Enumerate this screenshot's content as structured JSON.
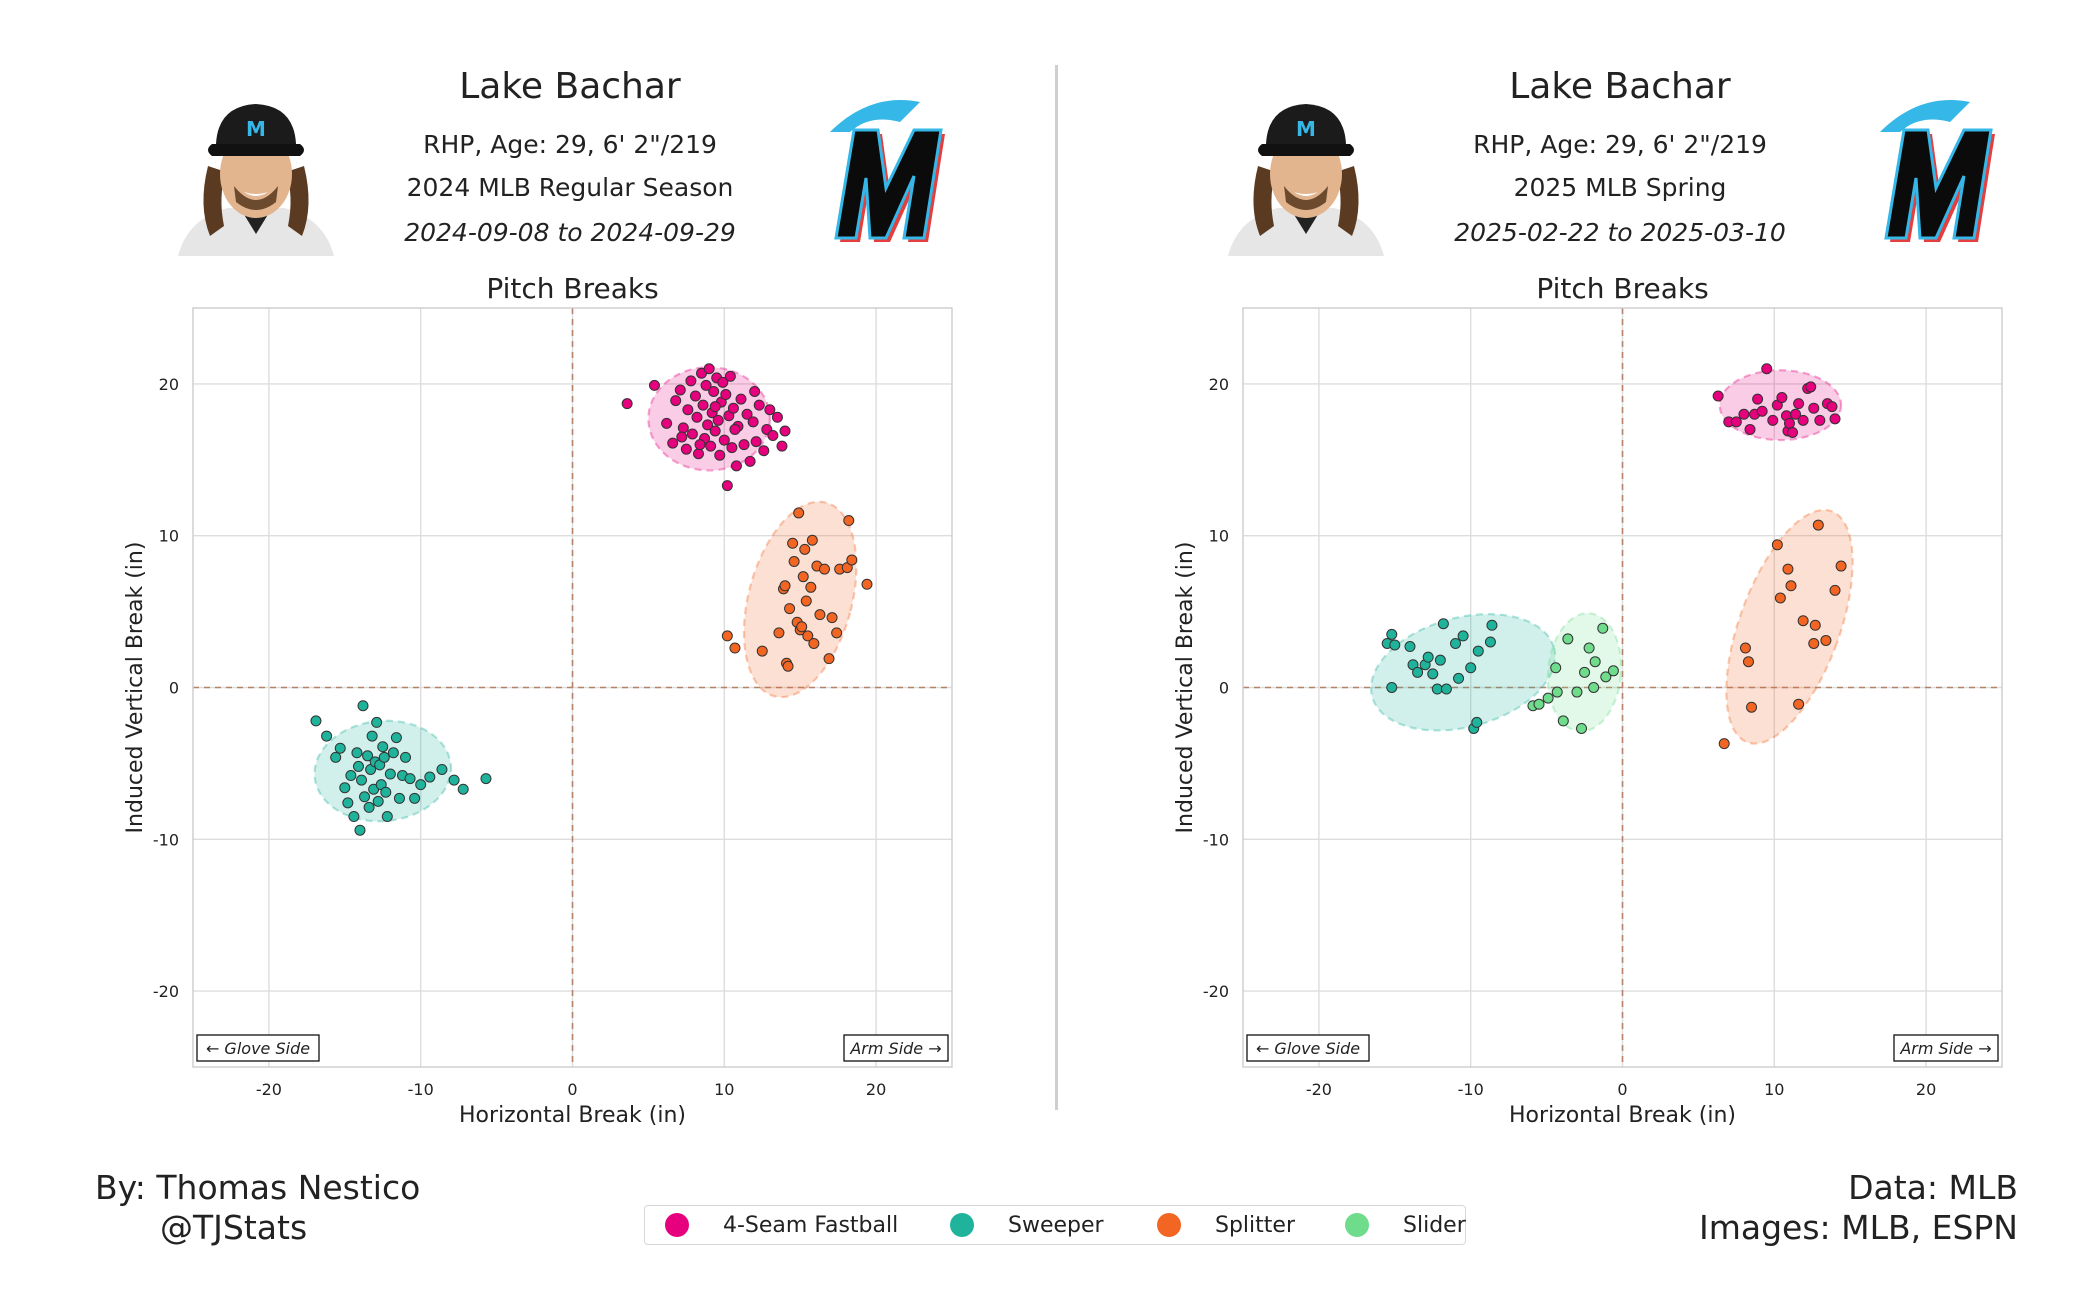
{
  "colors": {
    "4-Seam Fastball": "#e6007e",
    "Sweeper": "#20b39c",
    "Splitter": "#f26522",
    "Slider": "#6fdc8c"
  },
  "icons": {
    "headshot": "player-headshot",
    "logo": "marlins-logo"
  },
  "panels": [
    {
      "player_name": "Lake Bachar",
      "bio": "RHP, Age: 29, 6' 2\"/219",
      "season": "2024 MLB Regular Season",
      "dates": "2024-09-08 to 2024-09-29"
    },
    {
      "player_name": "Lake Bachar",
      "bio": "RHP, Age: 29, 6' 2\"/219",
      "season": "2025 MLB Spring",
      "dates": "2025-02-22 to 2025-03-10"
    }
  ],
  "credits": {
    "by": "By: Thomas Nestico",
    "handle": "@TJStats",
    "data": "Data: MLB",
    "images": "Images: MLB, ESPN"
  },
  "legend": [
    "4-Seam Fastball",
    "Sweeper",
    "Splitter",
    "Slider"
  ],
  "chart_data": [
    {
      "type": "scatter",
      "title": "Pitch Breaks",
      "xlabel": "Horizontal Break (in)",
      "ylabel": "Induced Vertical Break (in)",
      "xlim": [
        -25,
        25
      ],
      "ylim": [
        -25,
        25
      ],
      "xticks": [
        -20,
        -10,
        0,
        10,
        20
      ],
      "yticks": [
        -20,
        -10,
        0,
        10,
        20
      ],
      "grid": true,
      "annotations": {
        "left": "← Glove Side",
        "right": "Arm Side →"
      },
      "ellipses": [
        {
          "pitch": "4-Seam Fastball",
          "cx": 9,
          "cy": 17.7,
          "rx": 4,
          "ry": 3.4,
          "angle": 0
        },
        {
          "pitch": "Splitter",
          "cx": 15,
          "cy": 5.8,
          "rx": 3.4,
          "ry": 6.6,
          "angle": 15
        },
        {
          "pitch": "Sweeper",
          "cx": -12.5,
          "cy": -5.5,
          "rx": 4.5,
          "ry": 3.3,
          "angle": -5
        }
      ],
      "series": [
        {
          "name": "4-Seam Fastball",
          "points": [
            [
              3.6,
              18.7
            ],
            [
              5.4,
              19.9
            ],
            [
              6.2,
              17.4
            ],
            [
              6.6,
              16.1
            ],
            [
              6.8,
              18.9
            ],
            [
              7.1,
              19.6
            ],
            [
              7.3,
              17.1
            ],
            [
              7.5,
              15.7
            ],
            [
              7.6,
              18.3
            ],
            [
              7.8,
              20.2
            ],
            [
              7.9,
              16.7
            ],
            [
              8.1,
              19.2
            ],
            [
              8.2,
              17.8
            ],
            [
              8.3,
              15.4
            ],
            [
              8.5,
              20.7
            ],
            [
              8.6,
              18.6
            ],
            [
              8.7,
              16.4
            ],
            [
              8.8,
              19.9
            ],
            [
              8.9,
              17.3
            ],
            [
              9.0,
              21.0
            ],
            [
              9.1,
              15.9
            ],
            [
              9.2,
              18.1
            ],
            [
              9.3,
              19.5
            ],
            [
              9.4,
              16.9
            ],
            [
              9.5,
              20.4
            ],
            [
              9.6,
              17.6
            ],
            [
              9.7,
              15.3
            ],
            [
              9.8,
              18.8
            ],
            [
              9.9,
              20.1
            ],
            [
              10.0,
              16.3
            ],
            [
              10.1,
              19.3
            ],
            [
              10.2,
              13.3
            ],
            [
              10.3,
              17.9
            ],
            [
              10.4,
              20.5
            ],
            [
              10.5,
              15.8
            ],
            [
              10.6,
              18.4
            ],
            [
              10.8,
              14.6
            ],
            [
              10.9,
              17.2
            ],
            [
              11.1,
              19.0
            ],
            [
              11.3,
              16.0
            ],
            [
              11.5,
              18.0
            ],
            [
              11.7,
              14.9
            ],
            [
              11.9,
              17.5
            ],
            [
              12.1,
              16.2
            ],
            [
              12.3,
              18.6
            ],
            [
              12.6,
              15.6
            ],
            [
              12.8,
              17.0
            ],
            [
              13.0,
              18.3
            ],
            [
              13.2,
              16.6
            ],
            [
              13.5,
              17.8
            ],
            [
              13.8,
              15.9
            ],
            [
              14.0,
              16.9
            ],
            [
              9.4,
              18.5
            ],
            [
              8.4,
              16.0
            ],
            [
              10.7,
              17.0
            ],
            [
              12.0,
              19.5
            ],
            [
              7.2,
              16.5
            ]
          ]
        },
        {
          "name": "Splitter",
          "points": [
            [
              10.2,
              3.4
            ],
            [
              10.7,
              2.6
            ],
            [
              12.5,
              2.4
            ],
            [
              13.6,
              3.6
            ],
            [
              14.1,
              1.6
            ],
            [
              14.2,
              1.4
            ],
            [
              14.3,
              5.2
            ],
            [
              14.5,
              9.5
            ],
            [
              14.6,
              8.3
            ],
            [
              14.8,
              4.3
            ],
            [
              14.9,
              11.5
            ],
            [
              15.0,
              3.8
            ],
            [
              15.2,
              7.3
            ],
            [
              15.3,
              9.1
            ],
            [
              15.4,
              5.7
            ],
            [
              15.5,
              3.4
            ],
            [
              15.7,
              6.6
            ],
            [
              15.8,
              9.7
            ],
            [
              15.9,
              2.9
            ],
            [
              16.1,
              8.0
            ],
            [
              16.3,
              4.8
            ],
            [
              16.6,
              7.8
            ],
            [
              16.9,
              1.9
            ],
            [
              17.1,
              4.6
            ],
            [
              17.4,
              3.6
            ],
            [
              17.6,
              7.8
            ],
            [
              18.1,
              7.9
            ],
            [
              18.2,
              11.0
            ],
            [
              18.4,
              8.4
            ],
            [
              19.4,
              6.8
            ],
            [
              13.9,
              6.5
            ],
            [
              14.0,
              6.7
            ],
            [
              15.1,
              4.0
            ]
          ]
        },
        {
          "name": "Sweeper",
          "points": [
            [
              -16.9,
              -2.2
            ],
            [
              -16.2,
              -3.2
            ],
            [
              -15.6,
              -4.6
            ],
            [
              -15.3,
              -4.0
            ],
            [
              -15.0,
              -6.6
            ],
            [
              -14.8,
              -7.6
            ],
            [
              -14.6,
              -5.8
            ],
            [
              -14.4,
              -8.5
            ],
            [
              -14.2,
              -4.3
            ],
            [
              -14.0,
              -9.4
            ],
            [
              -13.9,
              -6.1
            ],
            [
              -13.8,
              -1.2
            ],
            [
              -13.7,
              -7.2
            ],
            [
              -13.5,
              -4.5
            ],
            [
              -13.4,
              -7.9
            ],
            [
              -13.3,
              -5.4
            ],
            [
              -13.2,
              -3.2
            ],
            [
              -13.1,
              -6.7
            ],
            [
              -13.0,
              -4.9
            ],
            [
              -12.9,
              -2.3
            ],
            [
              -12.8,
              -7.5
            ],
            [
              -12.7,
              -5.1
            ],
            [
              -12.6,
              -6.4
            ],
            [
              -12.5,
              -3.9
            ],
            [
              -12.4,
              -4.6
            ],
            [
              -12.2,
              -8.5
            ],
            [
              -12.0,
              -5.7
            ],
            [
              -11.8,
              -4.3
            ],
            [
              -11.6,
              -3.3
            ],
            [
              -11.4,
              -7.3
            ],
            [
              -11.2,
              -5.8
            ],
            [
              -11.0,
              -4.6
            ],
            [
              -10.7,
              -6.0
            ],
            [
              -10.4,
              -7.3
            ],
            [
              -10.0,
              -6.4
            ],
            [
              -9.4,
              -5.9
            ],
            [
              -8.6,
              -5.4
            ],
            [
              -7.8,
              -6.1
            ],
            [
              -7.2,
              -6.7
            ],
            [
              -5.7,
              -6.0
            ],
            [
              -14.1,
              -5.2
            ],
            [
              -12.3,
              -6.9
            ]
          ]
        }
      ]
    },
    {
      "type": "scatter",
      "title": "Pitch Breaks",
      "xlabel": "Horizontal Break (in)",
      "ylabel": "Induced Vertical Break (in)",
      "xlim": [
        -25,
        25
      ],
      "ylim": [
        -25,
        25
      ],
      "xticks": [
        -20,
        -10,
        0,
        10,
        20
      ],
      "yticks": [
        -20,
        -10,
        0,
        10,
        20
      ],
      "grid": true,
      "annotations": {
        "left": "← Glove Side",
        "right": "Arm Side →"
      },
      "ellipses": [
        {
          "pitch": "4-Seam Fastball",
          "cx": 10.4,
          "cy": 18.6,
          "rx": 4,
          "ry": 2.3,
          "angle": 0
        },
        {
          "pitch": "Splitter",
          "cx": 11,
          "cy": 4,
          "rx": 3.3,
          "ry": 8.1,
          "angle": 20
        },
        {
          "pitch": "Sweeper",
          "cx": -10.5,
          "cy": 1,
          "rx": 6.2,
          "ry": 3.6,
          "angle": -15
        },
        {
          "pitch": "Slider",
          "cx": -2.5,
          "cy": 1,
          "rx": 2.4,
          "ry": 3.9,
          "angle": 5
        }
      ],
      "series": [
        {
          "name": "4-Seam Fastball",
          "points": [
            [
              6.3,
              19.2
            ],
            [
              7.0,
              17.5
            ],
            [
              7.5,
              17.5
            ],
            [
              8.0,
              18.0
            ],
            [
              8.4,
              17.0
            ],
            [
              8.7,
              18.0
            ],
            [
              8.9,
              19.0
            ],
            [
              9.2,
              18.2
            ],
            [
              9.5,
              21.0
            ],
            [
              9.9,
              17.6
            ],
            [
              10.2,
              18.6
            ],
            [
              10.5,
              19.1
            ],
            [
              10.8,
              17.9
            ],
            [
              10.9,
              16.9
            ],
            [
              11.0,
              17.4
            ],
            [
              11.2,
              16.8
            ],
            [
              11.4,
              18.0
            ],
            [
              11.6,
              18.7
            ],
            [
              11.9,
              17.6
            ],
            [
              12.2,
              19.7
            ],
            [
              12.4,
              19.8
            ],
            [
              12.6,
              18.4
            ],
            [
              13.0,
              17.6
            ],
            [
              13.5,
              18.7
            ],
            [
              13.8,
              18.5
            ],
            [
              14.0,
              17.7
            ]
          ]
        },
        {
          "name": "Splitter",
          "points": [
            [
              6.7,
              -3.7
            ],
            [
              8.1,
              2.6
            ],
            [
              8.3,
              1.7
            ],
            [
              8.5,
              -1.3
            ],
            [
              10.2,
              9.4
            ],
            [
              10.4,
              5.9
            ],
            [
              10.9,
              7.8
            ],
            [
              11.1,
              6.7
            ],
            [
              11.6,
              -1.1
            ],
            [
              11.9,
              4.4
            ],
            [
              12.6,
              2.9
            ],
            [
              12.7,
              4.1
            ],
            [
              12.9,
              10.7
            ],
            [
              13.4,
              3.1
            ],
            [
              14.0,
              6.4
            ],
            [
              14.4,
              8.0
            ]
          ]
        },
        {
          "name": "Sweeper",
          "points": [
            [
              -15.5,
              2.9
            ],
            [
              -15.2,
              3.5
            ],
            [
              -15.0,
              2.8
            ],
            [
              -15.2,
              0.0
            ],
            [
              -14.0,
              2.7
            ],
            [
              -13.8,
              1.5
            ],
            [
              -13.5,
              1.0
            ],
            [
              -13.0,
              1.5
            ],
            [
              -12.8,
              2.0
            ],
            [
              -12.5,
              0.9
            ],
            [
              -12.2,
              -0.1
            ],
            [
              -12.0,
              1.8
            ],
            [
              -11.8,
              4.2
            ],
            [
              -11.6,
              -0.1
            ],
            [
              -11.0,
              2.9
            ],
            [
              -10.8,
              0.6
            ],
            [
              -10.5,
              3.4
            ],
            [
              -10.0,
              1.3
            ],
            [
              -9.8,
              -2.7
            ],
            [
              -9.6,
              -2.3
            ],
            [
              -9.5,
              2.4
            ],
            [
              -8.7,
              3.0
            ],
            [
              -8.6,
              4.1
            ]
          ]
        },
        {
          "name": "Slider",
          "points": [
            [
              -5.9,
              -1.2
            ],
            [
              -5.5,
              -1.1
            ],
            [
              -4.9,
              -0.7
            ],
            [
              -4.4,
              1.3
            ],
            [
              -4.3,
              -0.3
            ],
            [
              -3.9,
              -2.2
            ],
            [
              -3.6,
              3.2
            ],
            [
              -3.0,
              -0.3
            ],
            [
              -2.7,
              -2.7
            ],
            [
              -2.5,
              1.0
            ],
            [
              -2.2,
              2.6
            ],
            [
              -1.9,
              0.0
            ],
            [
              -1.8,
              1.7
            ],
            [
              -1.3,
              3.9
            ],
            [
              -1.1,
              0.7
            ],
            [
              -0.6,
              1.1
            ]
          ]
        }
      ]
    }
  ]
}
